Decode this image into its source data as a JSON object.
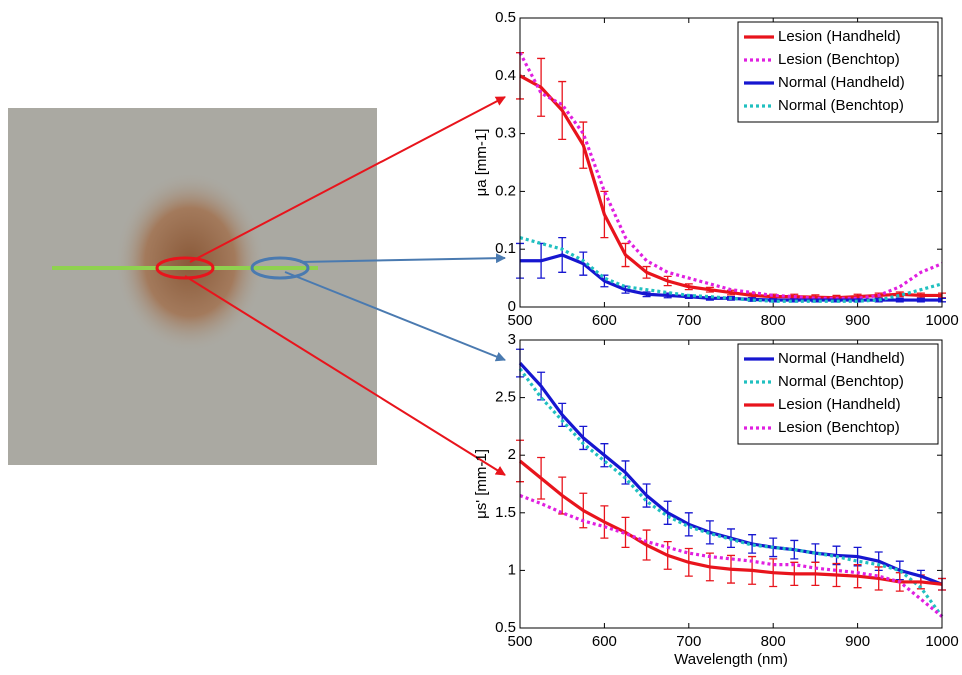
{
  "chart_data": [
    {
      "type": "line",
      "ylabel": "μa [mm-1]",
      "x": [
        500,
        525,
        550,
        575,
        600,
        625,
        650,
        675,
        700,
        725,
        750,
        775,
        800,
        825,
        850,
        875,
        900,
        925,
        950,
        975,
        1000
      ],
      "xlim": [
        500,
        1000
      ],
      "xticks": [
        500,
        600,
        700,
        800,
        900,
        1000
      ],
      "ylim": [
        0,
        0.5
      ],
      "yticks": [
        0,
        0.1,
        0.2,
        0.3,
        0.4,
        0.5
      ],
      "legend": "upper right",
      "series": [
        {
          "name": "Lesion (Handheld)",
          "color": "#e8141c",
          "style": "solid",
          "values": [
            0.4,
            0.38,
            0.34,
            0.28,
            0.16,
            0.09,
            0.06,
            0.045,
            0.035,
            0.03,
            0.025,
            0.02,
            0.018,
            0.018,
            0.017,
            0.016,
            0.018,
            0.02,
            0.022,
            0.02,
            0.02
          ],
          "errors": [
            0.04,
            0.05,
            0.05,
            0.04,
            0.04,
            0.02,
            0.01,
            0.008,
            0.005,
            0.004,
            0.004,
            0.004,
            0.004,
            0.004,
            0.004,
            0.004,
            0.004,
            0.004,
            0.004,
            0.004,
            0.004
          ]
        },
        {
          "name": "Lesion (Benchtop)",
          "color": "#e020e0",
          "style": "dotted",
          "values": [
            0.44,
            0.37,
            0.35,
            0.3,
            0.2,
            0.12,
            0.08,
            0.06,
            0.05,
            0.04,
            0.03,
            0.025,
            0.02,
            0.018,
            0.015,
            0.015,
            0.015,
            0.02,
            0.035,
            0.06,
            0.075
          ]
        },
        {
          "name": "Normal (Handheld)",
          "color": "#1616d0",
          "style": "solid",
          "values": [
            0.08,
            0.08,
            0.09,
            0.075,
            0.045,
            0.03,
            0.022,
            0.02,
            0.018,
            0.015,
            0.015,
            0.013,
            0.012,
            0.012,
            0.012,
            0.012,
            0.012,
            0.012,
            0.012,
            0.012,
            0.012
          ],
          "errors": [
            0.03,
            0.03,
            0.03,
            0.02,
            0.01,
            0.006,
            0.004,
            0.004,
            0.003,
            0.003,
            0.003,
            0.003,
            0.003,
            0.003,
            0.003,
            0.003,
            0.003,
            0.003,
            0.003,
            0.003,
            0.003
          ]
        },
        {
          "name": "Normal (Benchtop)",
          "color": "#20c0c0",
          "style": "dotted",
          "values": [
            0.12,
            0.11,
            0.1,
            0.08,
            0.05,
            0.035,
            0.03,
            0.025,
            0.02,
            0.018,
            0.015,
            0.012,
            0.01,
            0.01,
            0.01,
            0.01,
            0.01,
            0.012,
            0.02,
            0.03,
            0.04
          ]
        }
      ]
    },
    {
      "type": "line",
      "ylabel": "μs' [mm-1]",
      "xlabel": "Wavelength (nm)",
      "x": [
        500,
        525,
        550,
        575,
        600,
        625,
        650,
        675,
        700,
        725,
        750,
        775,
        800,
        825,
        850,
        875,
        900,
        925,
        950,
        975,
        1000
      ],
      "xlim": [
        500,
        1000
      ],
      "xticks": [
        500,
        600,
        700,
        800,
        900,
        1000
      ],
      "ylim": [
        0.5,
        3
      ],
      "yticks": [
        0.5,
        1,
        1.5,
        2,
        2.5,
        3
      ],
      "legend": "upper right",
      "series": [
        {
          "name": "Normal (Handheld)",
          "color": "#1616d0",
          "style": "solid",
          "values": [
            2.8,
            2.6,
            2.35,
            2.15,
            2.0,
            1.85,
            1.65,
            1.5,
            1.4,
            1.33,
            1.28,
            1.23,
            1.2,
            1.18,
            1.15,
            1.13,
            1.12,
            1.08,
            1.0,
            0.95,
            0.88
          ],
          "errors": [
            0.12,
            0.12,
            0.1,
            0.1,
            0.1,
            0.1,
            0.1,
            0.1,
            0.1,
            0.1,
            0.08,
            0.08,
            0.08,
            0.08,
            0.08,
            0.08,
            0.08,
            0.08,
            0.08,
            0.05,
            0.05
          ]
        },
        {
          "name": "Normal (Benchtop)",
          "color": "#20c0c0",
          "style": "dotted",
          "values": [
            2.75,
            2.5,
            2.3,
            2.1,
            1.95,
            1.8,
            1.6,
            1.47,
            1.38,
            1.32,
            1.27,
            1.22,
            1.2,
            1.18,
            1.15,
            1.12,
            1.08,
            1.05,
            1.0,
            0.85,
            0.6
          ]
        },
        {
          "name": "Lesion (Handheld)",
          "color": "#e8141c",
          "style": "solid",
          "values": [
            1.95,
            1.8,
            1.65,
            1.52,
            1.42,
            1.33,
            1.22,
            1.13,
            1.07,
            1.03,
            1.01,
            1.0,
            0.98,
            0.97,
            0.97,
            0.96,
            0.95,
            0.93,
            0.9,
            0.9,
            0.88
          ],
          "errors": [
            0.18,
            0.18,
            0.16,
            0.15,
            0.14,
            0.13,
            0.13,
            0.12,
            0.12,
            0.12,
            0.12,
            0.12,
            0.12,
            0.1,
            0.1,
            0.1,
            0.1,
            0.1,
            0.08,
            0.06,
            0.05
          ]
        },
        {
          "name": "Lesion (Benchtop)",
          "color": "#e020e0",
          "style": "dotted",
          "values": [
            1.65,
            1.58,
            1.5,
            1.43,
            1.38,
            1.32,
            1.25,
            1.2,
            1.15,
            1.12,
            1.1,
            1.08,
            1.05,
            1.05,
            1.02,
            1.0,
            0.98,
            0.95,
            0.9,
            0.75,
            0.6
          ]
        }
      ]
    }
  ]
}
